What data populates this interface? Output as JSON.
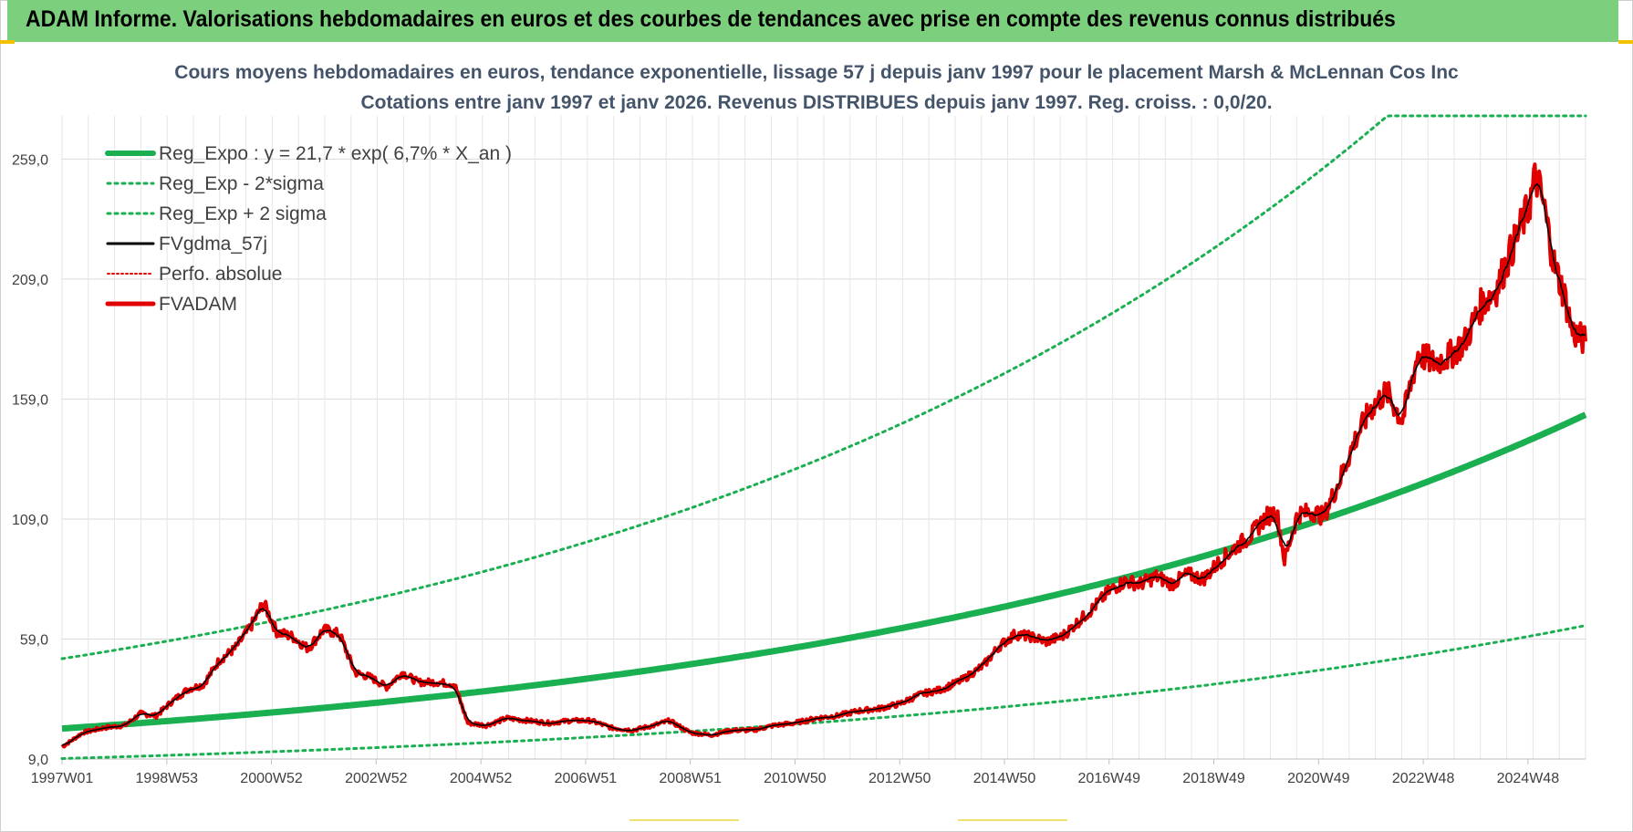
{
  "banner": {
    "title": "ADAM Informe. Valorisations hebdomadaires en euros et des courbes de tendances avec prise en compte des revenus connus distribués"
  },
  "colors": {
    "banner_bg": "#7ccf7c",
    "reg_expo": "#1aaf50",
    "band": "#1aaf50",
    "fvgdma": "#000000",
    "perfo": "#e00000",
    "fvadam": "#e00000",
    "grid": "#d9d9d9",
    "title": "#44546a"
  },
  "chart_data": {
    "type": "line",
    "title": "Cours moyens hebdomadaires en euros, tendance exponentielle, lissage 57 j depuis janv 1997 pour le placement Marsh & McLennan Cos Inc",
    "subtitle": "Cotations entre janv 1997 et janv 2026. Revenus DISTRIBUES depuis janv 1997. Reg. croiss. : 0,0/20.",
    "xlabel": "",
    "ylabel": "",
    "x_tick_labels": [
      "1997W01",
      "1998W53",
      "2000W52",
      "2002W52",
      "2004W52",
      "2006W51",
      "2008W51",
      "2010W50",
      "2012W50",
      "2014W50",
      "2016W49",
      "2018W49",
      "2020W49",
      "2022W48",
      "2024W48"
    ],
    "x_range": [
      1997.0,
      2026.1
    ],
    "y_tick_labels": [
      "9,0",
      "59,0",
      "109,0",
      "159,0",
      "209,0",
      "259,0"
    ],
    "ylim": [
      9,
      277
    ],
    "grid": true,
    "legend_position": "top-left",
    "series": [
      {
        "name": "Reg_Expo : y = 21,7 * exp( 6,7% *  X_an )",
        "style": "solid-thick",
        "color": "#1aaf50",
        "function": {
          "a": 21.7,
          "b": 0.067,
          "x0": 1997.0
        }
      },
      {
        "name": "Reg_Exp - 2*sigma",
        "style": "dotted",
        "color": "#1aaf50",
        "function": {
          "a": 9.2,
          "b": 0.067,
          "x0": 1997.0
        }
      },
      {
        "name": "Reg_Exp + 2 sigma",
        "style": "dotted",
        "color": "#1aaf50",
        "function": {
          "a": 50.8,
          "b": 0.067,
          "x0": 1997.0
        },
        "clip_max": 277
      },
      {
        "name": "FVgdma_57j",
        "style": "solid",
        "color": "#000000"
      },
      {
        "name": "Perfo. absolue",
        "style": "dotted-thin",
        "color": "#e00000"
      },
      {
        "name": "FVADAM",
        "style": "solid-thick",
        "color": "#e00000"
      }
    ],
    "fvadam_points": [
      [
        1997.0,
        14
      ],
      [
        1997.4,
        20
      ],
      [
        1997.8,
        22
      ],
      [
        1998.2,
        23
      ],
      [
        1998.5,
        28
      ],
      [
        1998.8,
        27
      ],
      [
        1999.1,
        33
      ],
      [
        1999.4,
        38
      ],
      [
        1999.7,
        40
      ],
      [
        2000.0,
        50
      ],
      [
        2000.3,
        55
      ],
      [
        2000.6,
        64
      ],
      [
        2000.85,
        74
      ],
      [
        2001.1,
        62
      ],
      [
        2001.4,
        60
      ],
      [
        2001.7,
        55
      ],
      [
        2002.0,
        63
      ],
      [
        2002.3,
        61
      ],
      [
        2002.6,
        45
      ],
      [
        2002.9,
        43
      ],
      [
        2003.2,
        39
      ],
      [
        2003.5,
        45
      ],
      [
        2003.8,
        41
      ],
      [
        2004.2,
        41
      ],
      [
        2004.5,
        40
      ],
      [
        2004.75,
        24
      ],
      [
        2005.1,
        23
      ],
      [
        2005.5,
        26
      ],
      [
        2005.9,
        25
      ],
      [
        2006.3,
        24
      ],
      [
        2006.7,
        25
      ],
      [
        2007.1,
        25
      ],
      [
        2007.5,
        22
      ],
      [
        2007.9,
        21
      ],
      [
        2008.3,
        23
      ],
      [
        2008.6,
        25
      ],
      [
        2009.0,
        20
      ],
      [
        2009.4,
        19
      ],
      [
        2009.8,
        21
      ],
      [
        2010.2,
        21
      ],
      [
        2010.6,
        23
      ],
      [
        2011.0,
        24
      ],
      [
        2011.4,
        26
      ],
      [
        2011.8,
        27
      ],
      [
        2012.2,
        29
      ],
      [
        2012.6,
        30
      ],
      [
        2013.0,
        32
      ],
      [
        2013.4,
        36
      ],
      [
        2013.8,
        38
      ],
      [
        2014.2,
        42
      ],
      [
        2014.6,
        48
      ],
      [
        2014.9,
        56
      ],
      [
        2015.2,
        61
      ],
      [
        2015.5,
        60
      ],
      [
        2015.8,
        58
      ],
      [
        2016.1,
        60
      ],
      [
        2016.4,
        66
      ],
      [
        2016.7,
        72
      ],
      [
        2017.0,
        79
      ],
      [
        2017.3,
        83
      ],
      [
        2017.6,
        82
      ],
      [
        2017.9,
        85
      ],
      [
        2018.2,
        82
      ],
      [
        2018.5,
        86
      ],
      [
        2018.8,
        84
      ],
      [
        2019.1,
        91
      ],
      [
        2019.4,
        97
      ],
      [
        2019.7,
        102
      ],
      [
        2020.0,
        110
      ],
      [
        2020.2,
        112
      ],
      [
        2020.35,
        92
      ],
      [
        2020.6,
        111
      ],
      [
        2020.9,
        112
      ],
      [
        2021.1,
        110
      ],
      [
        2021.4,
        125
      ],
      [
        2021.7,
        142
      ],
      [
        2022.0,
        155
      ],
      [
        2022.3,
        162
      ],
      [
        2022.6,
        150
      ],
      [
        2022.9,
        178
      ],
      [
        2023.2,
        174
      ],
      [
        2023.5,
        177
      ],
      [
        2023.8,
        183
      ],
      [
        2024.1,
        198
      ],
      [
        2024.4,
        205
      ],
      [
        2024.7,
        222
      ],
      [
        2025.0,
        238
      ],
      [
        2025.15,
        252
      ],
      [
        2025.3,
        240
      ],
      [
        2025.5,
        215
      ],
      [
        2025.7,
        202
      ],
      [
        2025.85,
        187
      ],
      [
        2026.1,
        183
      ]
    ]
  }
}
